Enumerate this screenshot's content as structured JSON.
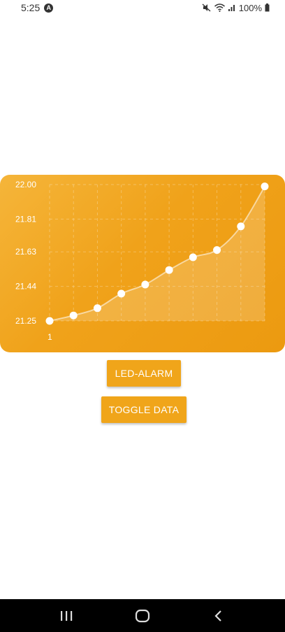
{
  "status_bar": {
    "time": "5:25",
    "battery": "100%",
    "icons": [
      "nav-a-icon",
      "mute-icon",
      "wifi-icon",
      "signal-icon",
      "battery-icon"
    ]
  },
  "colors": {
    "card_gradient_start": "#f5b53a",
    "card_gradient_end": "#ec9a10",
    "button": "#f0a51a",
    "line": "#ffffff"
  },
  "chart_data": {
    "type": "line",
    "x": [
      1,
      2,
      3,
      4,
      5,
      6,
      7,
      8,
      9,
      10
    ],
    "values": [
      21.25,
      21.28,
      21.32,
      21.4,
      21.45,
      21.53,
      21.6,
      21.64,
      21.77,
      21.99
    ],
    "x_tick_labels": [
      "1"
    ],
    "y_tick_labels": [
      "22.00",
      "21.81",
      "21.63",
      "21.44",
      "21.25"
    ],
    "y_ticks": [
      22.0,
      21.81,
      21.63,
      21.44,
      21.25
    ],
    "ylim": [
      21.25,
      22.0
    ],
    "grid": true,
    "filled": true
  },
  "buttons": {
    "led_alarm": "LED-ALARM",
    "toggle_data": "TOGGLE DATA"
  },
  "nav": {
    "icons": [
      "recents-icon",
      "home-icon",
      "back-icon"
    ]
  }
}
